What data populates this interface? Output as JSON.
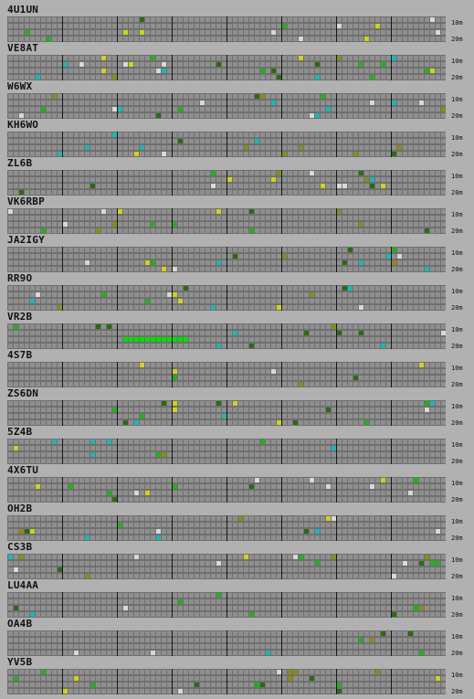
{
  "bands": [
    "10m",
    "20m"
  ],
  "colors": {
    "empty": "#8f8f8f",
    "green": "#22b21a",
    "bright_green": "#00e000",
    "dark_green": "#2c6b10",
    "cyan": "#1ab8b8",
    "yellow": "#d2d21e",
    "olive": "#8c8c18",
    "white": "#d9d9d9"
  },
  "stations": [
    {
      "callsign": "4U1UN"
    },
    {
      "callsign": "VE8AT"
    },
    {
      "callsign": "W6WX"
    },
    {
      "callsign": "KH6WO"
    },
    {
      "callsign": "ZL6B"
    },
    {
      "callsign": "VK6RBP"
    },
    {
      "callsign": "JA2IGY"
    },
    {
      "callsign": "RR9O"
    },
    {
      "callsign": "VR2B"
    },
    {
      "callsign": "4S7B"
    },
    {
      "callsign": "ZS6DN"
    },
    {
      "callsign": "5Z4B"
    },
    {
      "callsign": "4X6TU"
    },
    {
      "callsign": "OH2B"
    },
    {
      "callsign": "CS3B"
    },
    {
      "callsign": "LU4AA"
    },
    {
      "callsign": "OA4B"
    },
    {
      "callsign": "YV5B"
    }
  ]
}
